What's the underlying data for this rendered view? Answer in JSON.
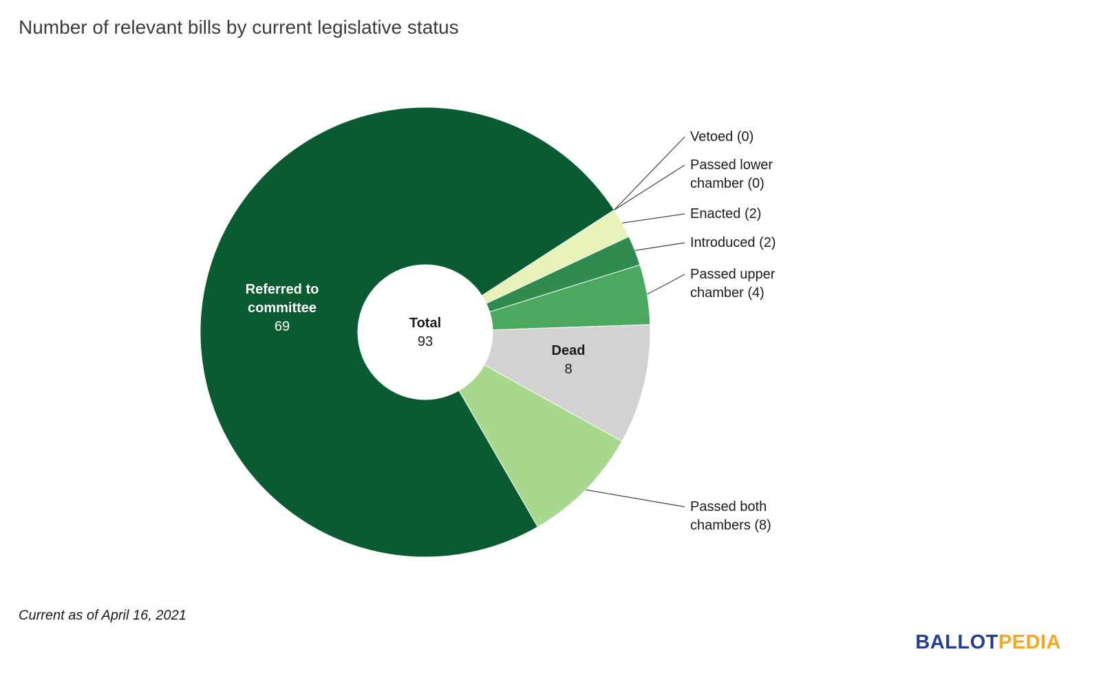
{
  "title": "Number of relevant bills by current legislative status",
  "footnote": "Current as of April 16, 2021",
  "logo": {
    "part1": "BALLOT",
    "part2": "PEDIA",
    "part1_color": "#233e92",
    "part2_color": "#f5a623"
  },
  "chart_data": {
    "type": "pie",
    "subtype": "donut",
    "title": "Number of relevant bills by current legislative status",
    "center_label": "Total",
    "center_value": "93",
    "total": 93,
    "legend_position": "right-callouts",
    "slices": [
      {
        "label": "Referred to committee",
        "value": 69,
        "color": "#0a5a32"
      },
      {
        "label": "Vetoed",
        "value": 0,
        "color": "#0a5a32"
      },
      {
        "label": "Passed lower chamber",
        "value": 0,
        "color": "#0a5a32"
      },
      {
        "label": "Enacted",
        "value": 2,
        "color": "#e7f2b8"
      },
      {
        "label": "Introduced",
        "value": 2,
        "color": "#2f8b4f"
      },
      {
        "label": "Passed upper chamber",
        "value": 4,
        "color": "#4aa85f"
      },
      {
        "label": "Dead",
        "value": 8,
        "color": "#d2d2d2"
      },
      {
        "label": "Passed both chambers",
        "value": 8,
        "color": "#a8d88e"
      }
    ],
    "callouts": [
      {
        "text": "Vetoed (0)",
        "slice_index": 1
      },
      {
        "text": "Passed lower chamber (0)",
        "slice_index": 2
      },
      {
        "text": "Enacted (2)",
        "slice_index": 3
      },
      {
        "text": "Introduced (2)",
        "slice_index": 4
      },
      {
        "text": "Passed upper chamber (4)",
        "slice_index": 5
      },
      {
        "text": "Passed both chambers (8)",
        "slice_index": 7
      }
    ],
    "inner_labels": {
      "referred": {
        "text": "Referred to committee",
        "value": "69"
      },
      "dead": {
        "text": "Dead",
        "value": "8"
      },
      "center": {
        "text": "Total",
        "value": "93"
      }
    }
  }
}
